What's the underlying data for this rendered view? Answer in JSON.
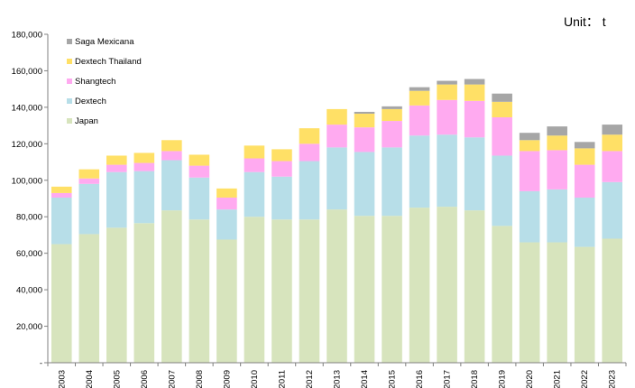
{
  "chart_data": {
    "type": "bar",
    "stacked": true,
    "unit_label": "Unit： t",
    "categories": [
      "2003",
      "2004",
      "2005",
      "2006",
      "2007",
      "2008",
      "2009",
      "2010",
      "2011",
      "2012",
      "2013",
      "2014",
      "2015",
      "2016",
      "2017",
      "2018",
      "2019",
      "2020",
      "2021",
      "2022",
      "2023"
    ],
    "ylim": [
      0,
      180000
    ],
    "yticks": [
      0,
      20000,
      40000,
      60000,
      80000,
      100000,
      120000,
      140000,
      160000,
      180000
    ],
    "ytick_labels": [
      "-",
      "20,000",
      "40,000",
      "60,000",
      "80,000",
      "100,000",
      "120,000",
      "140,000",
      "160,000",
      "180,000"
    ],
    "grid": false,
    "legend_position": "top-left",
    "series": [
      {
        "name": "Japan",
        "color": "#d7e4bd",
        "values": [
          65000,
          70500,
          74000,
          76500,
          83500,
          78500,
          67500,
          80000,
          78500,
          78500,
          84000,
          80500,
          80500,
          85000,
          85500,
          83500,
          75000,
          66000,
          66000,
          63500,
          68000
        ]
      },
      {
        "name": "Dextech",
        "color": "#b7dee8",
        "values": [
          25500,
          27500,
          30500,
          28500,
          27500,
          23000,
          16500,
          24500,
          23500,
          32000,
          34000,
          35000,
          37500,
          39500,
          39500,
          40000,
          38500,
          28000,
          29000,
          27000,
          31000
        ]
      },
      {
        "name": "Shangtech",
        "color": "#ffaaf0",
        "values": [
          2500,
          3000,
          4000,
          4500,
          5000,
          6500,
          6500,
          7500,
          8500,
          9500,
          12500,
          13500,
          14500,
          16500,
          19000,
          20000,
          21000,
          22000,
          21500,
          18000,
          17000
        ]
      },
      {
        "name": "Dextech Thailand",
        "color": "#ffe066",
        "values": [
          3500,
          5000,
          5000,
          5500,
          6000,
          6000,
          5000,
          7000,
          6500,
          8500,
          8500,
          7500,
          6500,
          8000,
          8500,
          9000,
          8500,
          6000,
          8000,
          9000,
          9000
        ]
      },
      {
        "name": "Saga Mexicana",
        "color": "#a6a6a6",
        "values": [
          0,
          0,
          0,
          0,
          0,
          0,
          0,
          0,
          0,
          0,
          0,
          1000,
          1500,
          2000,
          2000,
          3000,
          4500,
          4000,
          5000,
          3500,
          5500
        ]
      }
    ],
    "legend": [
      {
        "label": "Saga Mexicana",
        "color": "#a6a6a6"
      },
      {
        "label": "Dextech Thailand",
        "color": "#ffe066"
      },
      {
        "label": "Shangtech",
        "color": "#ffaaf0"
      },
      {
        "label": "Dextech",
        "color": "#b7dee8"
      },
      {
        "label": "Japan",
        "color": "#d7e4bd"
      }
    ]
  }
}
